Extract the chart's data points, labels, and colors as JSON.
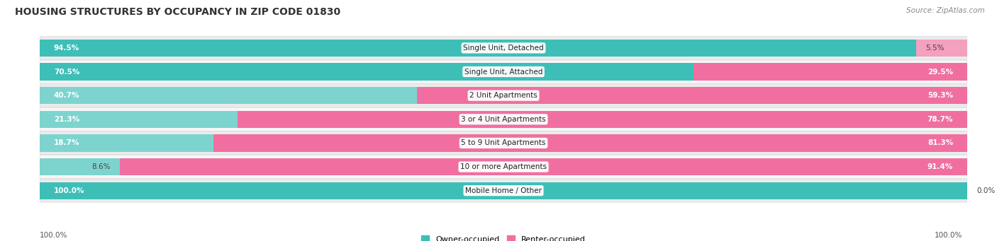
{
  "title": "HOUSING STRUCTURES BY OCCUPANCY IN ZIP CODE 01830",
  "source": "Source: ZipAtlas.com",
  "categories": [
    "Single Unit, Detached",
    "Single Unit, Attached",
    "2 Unit Apartments",
    "3 or 4 Unit Apartments",
    "5 to 9 Unit Apartments",
    "10 or more Apartments",
    "Mobile Home / Other"
  ],
  "owner_pct": [
    94.5,
    70.5,
    40.7,
    21.3,
    18.7,
    8.6,
    100.0
  ],
  "renter_pct": [
    5.5,
    29.5,
    59.3,
    78.7,
    81.3,
    91.4,
    0.0
  ],
  "owner_color_bright": "#3DBFB8",
  "owner_color_light": "#7DD4CF",
  "renter_color_bright": "#F06FA0",
  "renter_color_light": "#F4A0BF",
  "row_bg_odd": "#EBEBEB",
  "row_bg_even": "#F7F7F7",
  "title_fontsize": 10,
  "source_fontsize": 7.5,
  "label_fontsize": 7.5,
  "category_fontsize": 7.5,
  "background_color": "#FFFFFF",
  "use_bright_owner": [
    true,
    true,
    false,
    false,
    false,
    false,
    true
  ],
  "use_bright_renter": [
    false,
    true,
    true,
    true,
    true,
    true,
    false
  ]
}
